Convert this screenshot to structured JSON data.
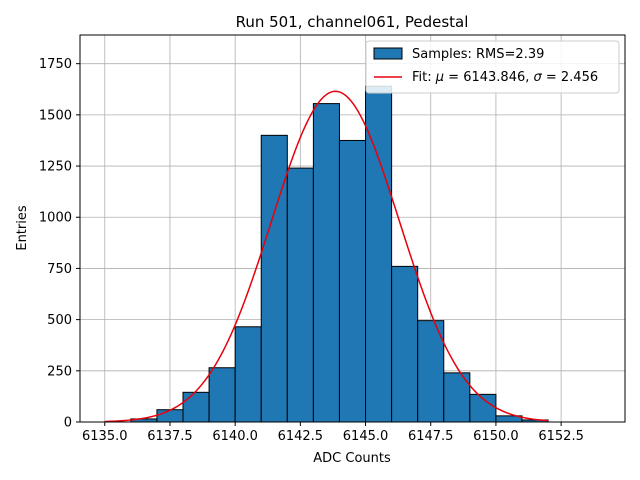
{
  "chart_data": {
    "type": "bar",
    "title": "Run 501, channel061, Pedestal",
    "xlabel": "ADC Counts",
    "ylabel": "Entries",
    "xlim": [
      6134.05,
      6154.95
    ],
    "ylim": [
      0,
      1890
    ],
    "grid": true,
    "legend_position": "top-right",
    "x_ticks": [
      6135.0,
      6137.5,
      6140.0,
      6142.5,
      6145.0,
      6147.5,
      6150.0,
      6152.5
    ],
    "x_tick_labels": [
      "6135.0",
      "6137.5",
      "6140.0",
      "6142.5",
      "6145.0",
      "6147.5",
      "6150.0",
      "6152.5"
    ],
    "y_ticks": [
      0,
      250,
      500,
      750,
      1000,
      1250,
      1500,
      1750
    ],
    "y_tick_labels": [
      "0",
      "250",
      "500",
      "750",
      "1000",
      "1250",
      "1500",
      "1750"
    ],
    "bar_width": 1,
    "bar_color": "#1f77b4",
    "fit_color": "#e8000b",
    "series": [
      {
        "name": "Samples: RMS=2.39",
        "kind": "histogram",
        "bin_starts": [
          6136,
          6137,
          6138,
          6139,
          6140,
          6141,
          6142,
          6143,
          6144,
          6145,
          6146,
          6147,
          6148,
          6149,
          6150,
          6151
        ],
        "values": [
          15,
          60,
          145,
          265,
          465,
          1400,
          1240,
          1555,
          1375,
          1640,
          760,
          495,
          240,
          135,
          30,
          10
        ]
      },
      {
        "name_prefix": "Fit: ",
        "name_mu": "μ",
        "name_mid": " = 6143.846, ",
        "name_sigma": "σ",
        "name_suffix": " = 2.456",
        "kind": "line",
        "mu": 6143.846,
        "sigma": 2.456,
        "amplitude": 1615,
        "x_range": [
          6135,
          6152
        ]
      }
    ]
  }
}
